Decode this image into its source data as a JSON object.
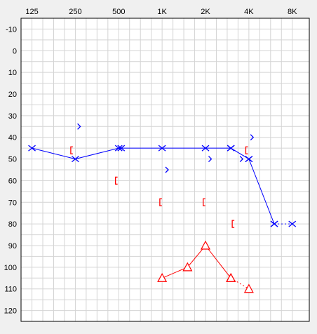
{
  "chart_data": {
    "type": "audiogram",
    "title": "",
    "xlabel": "",
    "ylabel": "",
    "x_scale": "log2",
    "x_ticks": [
      {
        "freq": 125,
        "label": "125"
      },
      {
        "freq": 250,
        "label": "250"
      },
      {
        "freq": 500,
        "label": "500"
      },
      {
        "freq": 1000,
        "label": "1K"
      },
      {
        "freq": 2000,
        "label": "2K"
      },
      {
        "freq": 4000,
        "label": "4K"
      },
      {
        "freq": 8000,
        "label": "8K"
      }
    ],
    "y_ticks": [
      -10,
      0,
      10,
      20,
      30,
      40,
      50,
      60,
      70,
      80,
      90,
      100,
      110,
      120
    ],
    "y_range": [
      -15,
      125
    ],
    "y_inverted": true,
    "x_range_freq": [
      105,
      10500
    ],
    "grid": true,
    "colors": {
      "left": "#0000ff",
      "right": "#ff0000",
      "grid": "#d4d4d4",
      "plot_bg": "#ffffff",
      "frame": "#000000"
    },
    "series": [
      {
        "symbol": "x",
        "color": "#0000ff",
        "connected": true,
        "line_style": "solid",
        "points": [
          {
            "freq": 125,
            "db": 45
          },
          {
            "freq": 250,
            "db": 50
          },
          {
            "freq": 500,
            "db": 45
          },
          {
            "freq": 1000,
            "db": 45
          },
          {
            "freq": 2000,
            "db": 45
          },
          {
            "freq": 3000,
            "db": 45
          },
          {
            "freq": 4000,
            "db": 50
          },
          {
            "freq": 6000,
            "db": 80
          }
        ]
      },
      {
        "symbol": "x",
        "color": "#0000ff",
        "connected": true,
        "line_style": "dotted",
        "points": [
          {
            "freq": 3000,
            "db": 45
          },
          {
            "freq": 4000,
            "db": 50
          }
        ]
      },
      {
        "symbol": "x",
        "color": "#0000ff",
        "connected": true,
        "line_style": "dotted",
        "points": [
          {
            "freq": 6000,
            "db": 80
          },
          {
            "freq": 8000,
            "db": 80
          }
        ]
      },
      {
        "symbol": "x",
        "color": "#0000ff",
        "connected": false,
        "points": [
          {
            "freq": 520,
            "db": 45
          }
        ]
      },
      {
        "symbol": ">",
        "color": "#0000ff",
        "connected": false,
        "points": [
          {
            "freq": 265,
            "db": 35
          },
          {
            "freq": 1080,
            "db": 55
          },
          {
            "freq": 2150,
            "db": 50
          },
          {
            "freq": 3550,
            "db": 50
          },
          {
            "freq": 4200,
            "db": 40
          }
        ]
      },
      {
        "symbol": "[",
        "color": "#ff0000",
        "connected": false,
        "points": [
          {
            "freq": 235,
            "db": 46
          },
          {
            "freq": 480,
            "db": 60
          },
          {
            "freq": 975,
            "db": 70
          },
          {
            "freq": 1950,
            "db": 70
          },
          {
            "freq": 3100,
            "db": 80
          },
          {
            "freq": 3850,
            "db": 46
          }
        ]
      },
      {
        "symbol": "triangle",
        "color": "#ff0000",
        "connected": true,
        "line_style": "solid",
        "points": [
          {
            "freq": 1000,
            "db": 105
          },
          {
            "freq": 1500,
            "db": 100
          },
          {
            "freq": 2000,
            "db": 90
          },
          {
            "freq": 3000,
            "db": 105
          }
        ]
      },
      {
        "symbol": "triangle",
        "color": "#ff0000",
        "connected": true,
        "line_style": "dotted",
        "points": [
          {
            "freq": 3000,
            "db": 105
          },
          {
            "freq": 4000,
            "db": 110
          }
        ]
      }
    ]
  }
}
